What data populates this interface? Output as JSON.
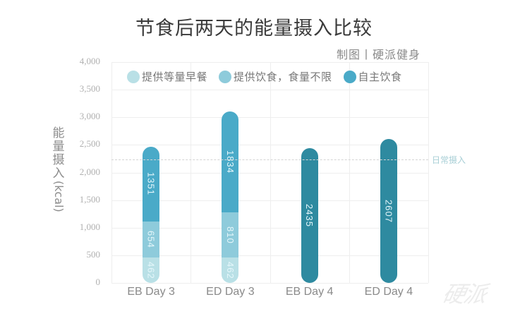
{
  "chart_data": {
    "type": "bar",
    "stacked": true,
    "title": "节食后两天的能量摄入比较",
    "subtitle": "制图丨硬派健身",
    "xlabel": "",
    "ylabel": "能量摄入(kcal)",
    "ylim": [
      0,
      4000
    ],
    "yticks": [
      "0",
      "500",
      "1,000",
      "1,500",
      "2,000",
      "2,500",
      "3,000",
      "3,500",
      "4,000"
    ],
    "grid": true,
    "legend_position": "top-inside",
    "categories": [
      "EB Day 3",
      "ED Day 3",
      "EB Day 4",
      "ED Day 4"
    ],
    "series": [
      {
        "name": "提供等量早餐",
        "color": "#b9e0e6",
        "values": [
          462,
          462,
          null,
          null
        ]
      },
      {
        "name": "提供饮食，食量不限",
        "color": "#8ecbdb",
        "values": [
          654,
          810,
          null,
          null
        ]
      },
      {
        "name": "自主饮食",
        "color": "#4aaac8",
        "values": [
          1351,
          1834,
          2435,
          2607
        ]
      }
    ],
    "segment_labels": [
      [
        "462",
        "654",
        "1351"
      ],
      [
        "462",
        "810",
        "1834"
      ],
      [
        "2435"
      ],
      [
        "2607"
      ]
    ],
    "day4_bar_color": "#2e8aa0",
    "annotations": [
      {
        "type": "reference-line",
        "label": "日常摄入",
        "value": 2240,
        "style": "dashed"
      }
    ]
  },
  "watermark": "硬派"
}
